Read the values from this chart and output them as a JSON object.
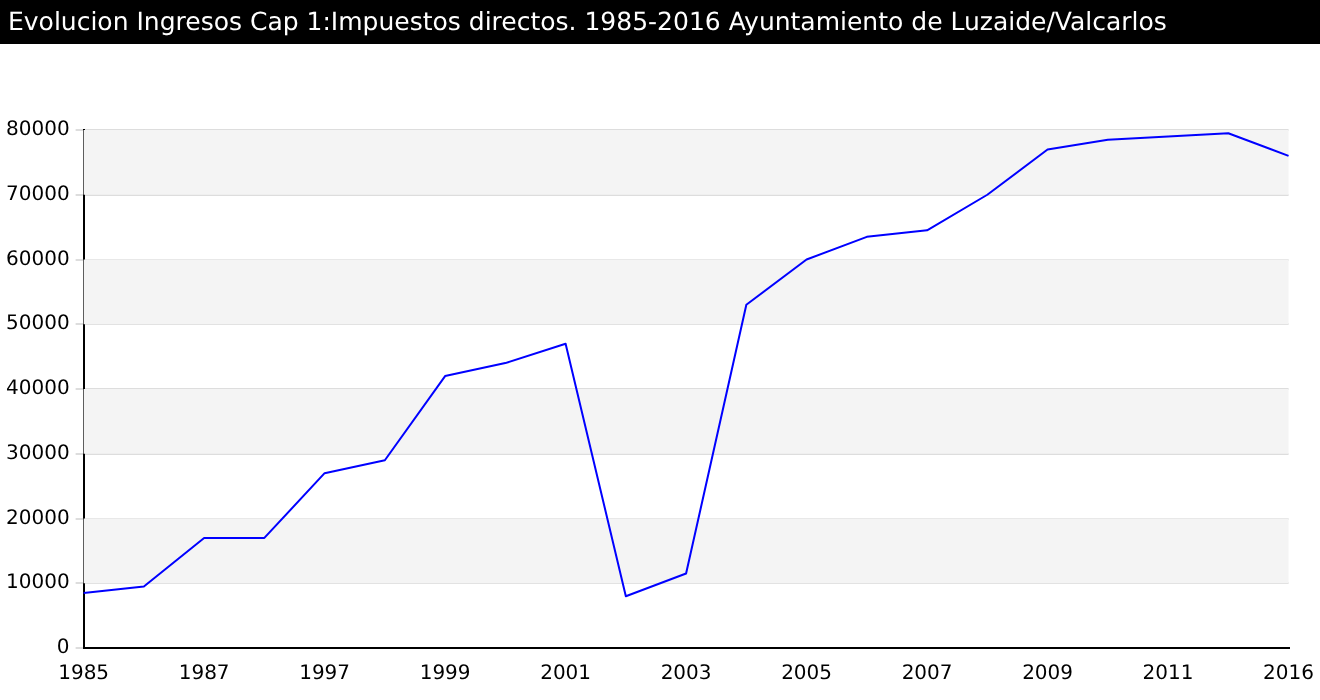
{
  "chart_data": {
    "type": "line",
    "title": "Evolucion Ingresos Cap 1:Impuestos directos. 1985-2016 Ayuntamiento de Luzaide/Valcarlos",
    "categories": [
      "1985",
      null,
      "1987",
      null,
      "1997",
      null,
      "1999",
      null,
      "2001",
      null,
      "2003",
      null,
      "2005",
      null,
      "2007",
      null,
      "2009",
      null,
      "2011",
      null,
      "2016"
    ],
    "series": [
      {
        "color": "#0000ff",
        "values": [
          8500,
          9500,
          17000,
          17000,
          27000,
          29000,
          42000,
          44000,
          47000,
          8000,
          11500,
          53000,
          60000,
          63500,
          64500,
          70000,
          77000,
          78500,
          79000,
          79500,
          76000
        ]
      }
    ],
    "ylim": [
      0,
      80000
    ],
    "yticks": [
      0,
      10000,
      20000,
      30000,
      40000,
      50000,
      60000,
      70000,
      80000
    ],
    "grid": "y",
    "legend": false,
    "marker": "none",
    "line_style": "solid"
  }
}
